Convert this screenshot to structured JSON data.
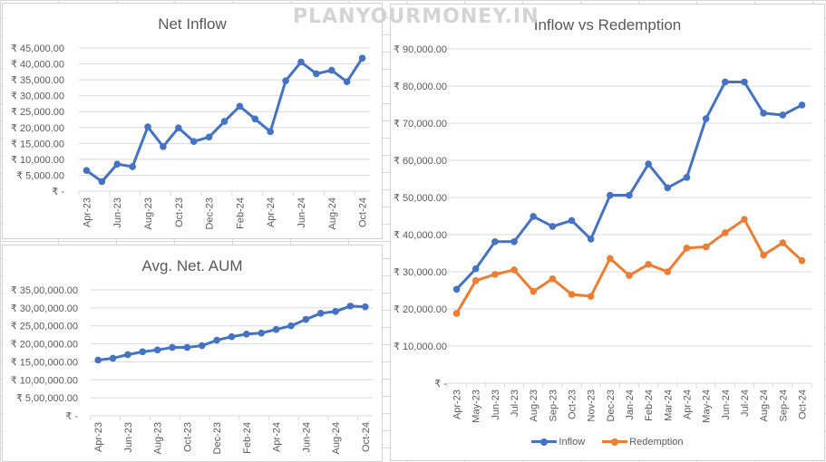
{
  "watermark": "PLANYOURMONEY.IN",
  "colors": {
    "inflow": "#4472C4",
    "redemption": "#ED7D31",
    "grid": "#d9d9d9",
    "text": "#595959"
  },
  "chart_data": [
    {
      "id": "net-inflow",
      "type": "line",
      "title": "Net Inflow",
      "xlabel": "",
      "ylabel": "",
      "ylim": [
        0,
        45000
      ],
      "yticks": [
        "₹ -",
        "₹ 5,000.00",
        "₹ 10,000.00",
        "₹ 15,000.00",
        "₹ 20,000.00",
        "₹ 25,000.00",
        "₹ 30,000.00",
        "₹ 35,000.00",
        "₹ 40,000.00",
        "₹ 45,000.00"
      ],
      "grid": true,
      "categories": [
        "Apr-23",
        "May-23",
        "Jun-23",
        "Jul-23",
        "Aug-23",
        "Sep-23",
        "Oct-23",
        "Nov-23",
        "Dec-23",
        "Jan-24",
        "Feb-24",
        "Mar-24",
        "Apr-24",
        "May-24",
        "Jun-24",
        "Jul-24",
        "Aug-24",
        "Sep-24",
        "Oct-24"
      ],
      "xtick_labels": [
        "Apr-23",
        "Jun-23",
        "Aug-23",
        "Oct-23",
        "Dec-23",
        "Feb-24",
        "Apr-24",
        "Jun-24",
        "Aug-24",
        "Oct-24"
      ],
      "series": [
        {
          "name": "Net Inflow",
          "color": "#4472C4",
          "values": [
            6500,
            3000,
            8500,
            7700,
            20200,
            14000,
            19900,
            15600,
            17000,
            21900,
            26700,
            22700,
            18700,
            34700,
            40600,
            36900,
            38000,
            34400,
            41800
          ]
        }
      ]
    },
    {
      "id": "avg-net-aum",
      "type": "line",
      "title": "Avg. Net. AUM",
      "xlabel": "",
      "ylabel": "",
      "ylim": [
        0,
        3500000
      ],
      "yticks": [
        "₹ -",
        "₹ 5,00,000.00",
        "₹ 10,00,000.00",
        "₹ 15,00,000.00",
        "₹ 20,00,000.00",
        "₹ 25,00,000.00",
        "₹ 30,00,000.00",
        "₹ 35,00,000.00"
      ],
      "grid": true,
      "categories": [
        "Apr-23",
        "May-23",
        "Jun-23",
        "Jul-23",
        "Aug-23",
        "Sep-23",
        "Oct-23",
        "Nov-23",
        "Dec-23",
        "Jan-24",
        "Feb-24",
        "Mar-24",
        "Apr-24",
        "May-24",
        "Jun-24",
        "Jul-24",
        "Aug-24",
        "Sep-24",
        "Oct-24"
      ],
      "xtick_labels": [
        "Apr-23",
        "Jun-23",
        "Aug-23",
        "Oct-23",
        "Dec-23",
        "Feb-24",
        "Apr-24",
        "Jun-24",
        "Aug-24",
        "Oct-24"
      ],
      "series": [
        {
          "name": "Avg. Net. AUM",
          "color": "#4472C4",
          "values": [
            1550000,
            1600000,
            1700000,
            1780000,
            1830000,
            1900000,
            1900000,
            1950000,
            2100000,
            2200000,
            2270000,
            2300000,
            2400000,
            2500000,
            2680000,
            2850000,
            2900000,
            3050000,
            3030000
          ]
        }
      ]
    },
    {
      "id": "inflow-vs-redemption",
      "type": "line",
      "title": "Inflow vs Redemption",
      "xlabel": "",
      "ylabel": "",
      "ylim": [
        0,
        90000
      ],
      "yticks": [
        "₹ -",
        "₹ 10,000.00",
        "₹ 20,000.00",
        "₹ 30,000.00",
        "₹ 40,000.00",
        "₹ 50,000.00",
        "₹ 60,000.00",
        "₹ 70,000.00",
        "₹ 80,000.00",
        "₹ 90,000.00"
      ],
      "grid": true,
      "legend_position": "bottom",
      "categories": [
        "Apr-23",
        "May-23",
        "Jun-23",
        "Jul-23",
        "Aug-23",
        "Sep-23",
        "Oct-23",
        "Nov-23",
        "Dec-23",
        "Jan-24",
        "Feb-24",
        "Mar-24",
        "Apr-24",
        "May-24",
        "Jun-24",
        "Jul-24",
        "Aug-24",
        "Sep-24",
        "Oct-24"
      ],
      "xtick_labels": [
        "Apr-23",
        "May-23",
        "Jun-23",
        "Jul-23",
        "Aug-23",
        "Sep-23",
        "Oct-23",
        "Nov-23",
        "Dec-23",
        "Jan-24",
        "Feb-24",
        "Mar-24",
        "Apr-24",
        "May-24",
        "Jun-24",
        "Jul-24",
        "Aug-24",
        "Sep-24",
        "Oct-24"
      ],
      "series": [
        {
          "name": "Inflow",
          "color": "#4472C4",
          "values": [
            25300,
            30800,
            38100,
            38100,
            44900,
            42200,
            43800,
            38800,
            50600,
            50600,
            59000,
            52600,
            55400,
            71200,
            81100,
            81100,
            72700,
            72200,
            74900
          ]
        },
        {
          "name": "Redemption",
          "color": "#ED7D31",
          "values": [
            18800,
            27600,
            29300,
            30500,
            24700,
            28100,
            23900,
            23400,
            33600,
            29000,
            32000,
            30000,
            36400,
            36700,
            40500,
            44100,
            34500,
            37800,
            33000
          ]
        }
      ]
    }
  ]
}
